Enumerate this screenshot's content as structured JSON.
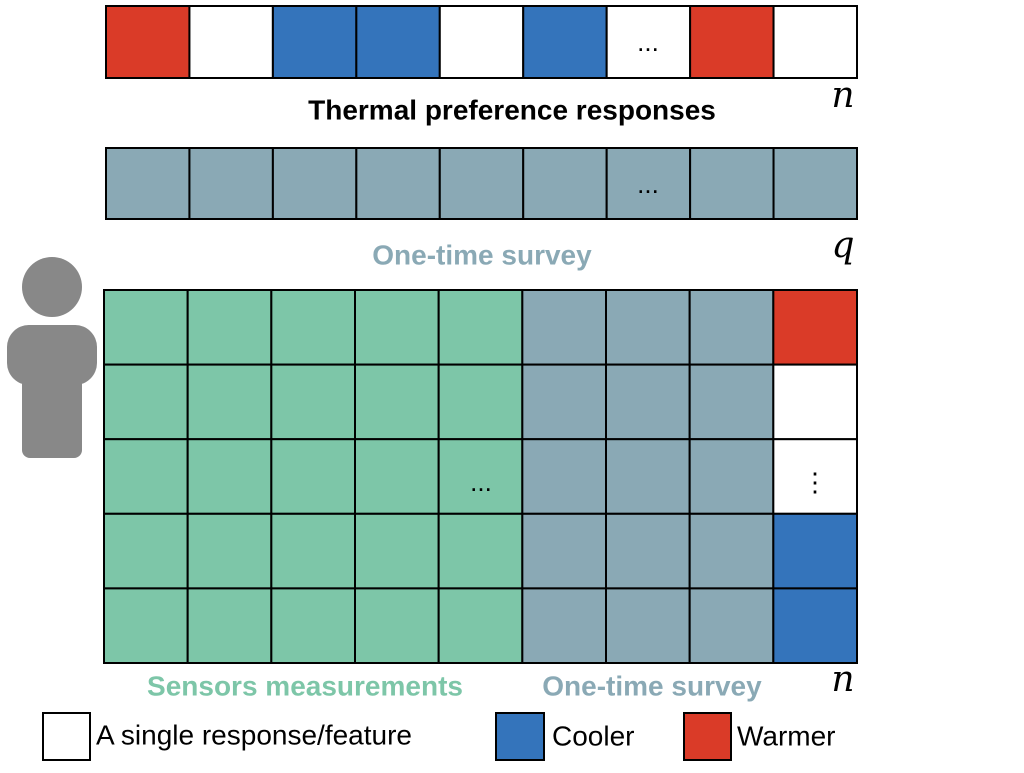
{
  "responses": {
    "label": "Thermal preference responses",
    "symbol": "n",
    "ellipsis": "..."
  },
  "survey": {
    "label": "One-time survey",
    "symbol": "q",
    "ellipsis": "..."
  },
  "matrix": {
    "sensors_label": "Sensors measurements",
    "survey_label": "One-time survey",
    "symbol": "n",
    "ellipsis": "...",
    "vertical_ellipsis": "⋮"
  },
  "legend": [
    "A single response/feature",
    "Cooler",
    "Warmer"
  ]
}
